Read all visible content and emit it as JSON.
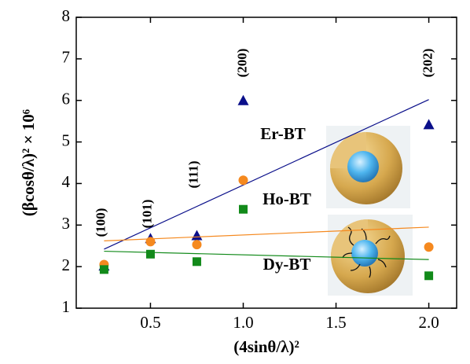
{
  "chart_data": {
    "type": "scatter",
    "x": [
      0.25,
      0.5,
      0.75,
      1.0,
      2.0
    ],
    "xlabel": "(4sinθ/λ)²",
    "ylabel": "(βcosθ/λ)² × 10⁶",
    "xlim": [
      0.1,
      2.15
    ],
    "ylim": [
      1,
      8
    ],
    "xticks": [
      0.5,
      {
        "value": 1,
        "label": "1.0"
      },
      1.5,
      {
        "value": 2,
        "label": "2.0"
      }
    ],
    "yticks": [
      1,
      2,
      3,
      4,
      5,
      6,
      7,
      8
    ],
    "annotations": [
      "(100)",
      "(101)",
      "(111)",
      "(200)",
      "(202)"
    ],
    "series": [
      {
        "name": "Er-BT",
        "color": "#0a0f8a",
        "marker": "triangle",
        "values": [
          2.02,
          2.68,
          2.75,
          6.0,
          5.42
        ],
        "fit": {
          "x": [
            0.25,
            2.0
          ],
          "y": [
            2.42,
            6.02
          ]
        }
      },
      {
        "name": "Ho-BT",
        "color": "#f5891f",
        "marker": "circle",
        "values": [
          2.05,
          2.6,
          2.53,
          4.08,
          2.47
        ],
        "fit": {
          "x": [
            0.25,
            2.0
          ],
          "y": [
            2.62,
            2.95
          ]
        }
      },
      {
        "name": "Dy-BT",
        "color": "#128a1a",
        "marker": "square",
        "values": [
          1.93,
          2.3,
          2.12,
          3.38,
          1.78
        ],
        "fit": {
          "x": [
            0.25,
            2.0
          ],
          "y": [
            2.37,
            2.17
          ]
        }
      }
    ]
  }
}
